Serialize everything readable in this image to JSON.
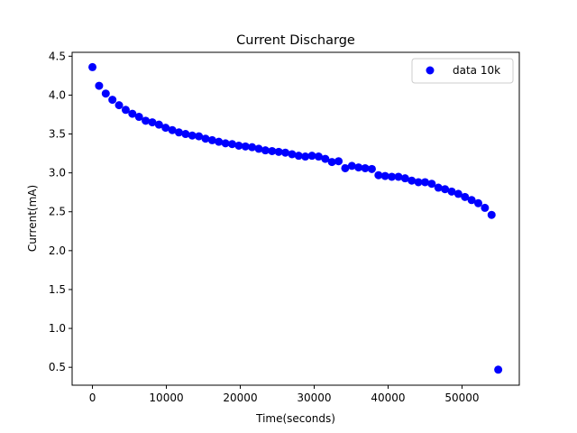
{
  "chart_data": {
    "type": "scatter",
    "title": "Current Discharge",
    "xlabel": "Time(seconds)",
    "ylabel": "Current(mA)",
    "xlim": [
      -2750,
      57750
    ],
    "ylim": [
      0.27,
      4.55
    ],
    "xticks": [
      0,
      10000,
      20000,
      30000,
      40000,
      50000
    ],
    "xtick_labels": [
      "0",
      "10000",
      "20000",
      "30000",
      "40000",
      "50000"
    ],
    "yticks": [
      0.5,
      1.0,
      1.5,
      2.0,
      2.5,
      3.0,
      3.5,
      4.0,
      4.5
    ],
    "ytick_labels": [
      "0.5",
      "1.0",
      "1.5",
      "2.0",
      "2.5",
      "3.0",
      "3.5",
      "4.0",
      "4.5"
    ],
    "grid": false,
    "legend_position": "top-right",
    "series": [
      {
        "name": "data 10k",
        "color": "#0000ff",
        "marker": "circle",
        "x": [
          0,
          900,
          1800,
          2700,
          3600,
          4500,
          5400,
          6300,
          7200,
          8100,
          9000,
          9900,
          10800,
          11700,
          12600,
          13500,
          14400,
          15300,
          16200,
          17100,
          18000,
          18900,
          19800,
          20700,
          21600,
          22500,
          23400,
          24300,
          25200,
          26100,
          27000,
          27900,
          28800,
          29700,
          30600,
          31500,
          32400,
          33300,
          34200,
          35100,
          36000,
          36900,
          37800,
          38700,
          39600,
          40500,
          41400,
          42300,
          43200,
          44100,
          45000,
          45900,
          46800,
          47700,
          48600,
          49500,
          50400,
          51300,
          52200,
          53100,
          54000,
          54900
        ],
        "y": [
          4.36,
          4.12,
          4.02,
          3.94,
          3.87,
          3.81,
          3.76,
          3.72,
          3.67,
          3.65,
          3.62,
          3.58,
          3.55,
          3.52,
          3.5,
          3.48,
          3.47,
          3.44,
          3.42,
          3.4,
          3.38,
          3.37,
          3.35,
          3.34,
          3.33,
          3.31,
          3.29,
          3.28,
          3.27,
          3.26,
          3.24,
          3.22,
          3.21,
          3.22,
          3.21,
          3.18,
          3.14,
          3.15,
          3.06,
          3.09,
          3.07,
          3.06,
          3.05,
          2.97,
          2.96,
          2.95,
          2.95,
          2.93,
          2.9,
          2.88,
          2.88,
          2.86,
          2.81,
          2.79,
          2.76,
          2.73,
          2.69,
          2.65,
          2.61,
          2.55,
          2.46,
          0.47
        ]
      }
    ]
  }
}
